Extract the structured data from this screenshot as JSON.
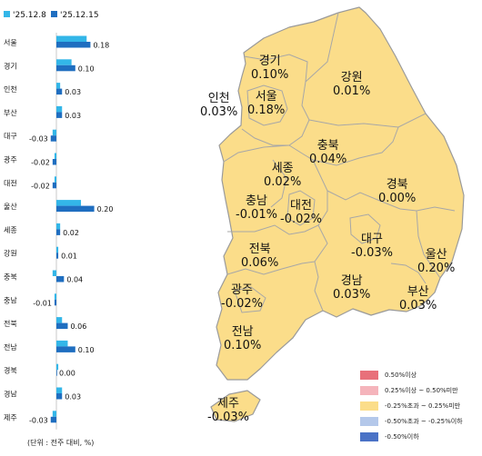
{
  "chart_data": {
    "type": "bar",
    "orientation": "horizontal",
    "legend_position": "top-left",
    "series": [
      {
        "name": "'25.12.8",
        "color": "#33b6e8"
      },
      {
        "name": "'25.12.15",
        "color": "#1f6ec0"
      }
    ],
    "categories": [
      "서울",
      "경기",
      "인천",
      "부산",
      "대구",
      "광주",
      "대전",
      "울산",
      "세종",
      "강원",
      "충북",
      "충남",
      "전북",
      "전남",
      "경북",
      "경남",
      "제주"
    ],
    "values_prev": [
      0.16,
      0.08,
      0.02,
      0.03,
      -0.02,
      -0.01,
      -0.01,
      0.13,
      0.02,
      0.01,
      -0.02,
      -0.01,
      0.03,
      0.06,
      0.01,
      0.03,
      -0.02
    ],
    "values_curr": [
      0.18,
      0.1,
      0.03,
      0.03,
      -0.03,
      -0.02,
      -0.02,
      0.2,
      0.02,
      0.01,
      0.04,
      -0.01,
      0.06,
      0.1,
      0.0,
      0.03,
      -0.03
    ],
    "labels_curr": [
      "0.18",
      "0.10",
      "0.03",
      "0.03",
      "-0.03",
      "-0.02",
      "-0.02",
      "0.20",
      "0.02",
      "0.01",
      "0.04",
      "-0.01",
      "0.06",
      "0.10",
      "0.00",
      "0.03",
      "-0.03"
    ],
    "unit_note": "(단위 : 전주 대비, %)"
  },
  "map": {
    "regions": [
      {
        "name": "경기",
        "value": "0.10%"
      },
      {
        "name": "강원",
        "value": "0.01%"
      },
      {
        "name": "인천",
        "value": "0.03%"
      },
      {
        "name": "서울",
        "value": "0.18%"
      },
      {
        "name": "충북",
        "value": "0.04%"
      },
      {
        "name": "세종",
        "value": "0.02%"
      },
      {
        "name": "경북",
        "value": "0.00%"
      },
      {
        "name": "충남",
        "value": "-0.01%"
      },
      {
        "name": "대전",
        "value": "-0.02%"
      },
      {
        "name": "대구",
        "value": "-0.03%"
      },
      {
        "name": "울산",
        "value": "0.20%"
      },
      {
        "name": "전북",
        "value": "0.06%"
      },
      {
        "name": "경남",
        "value": "0.03%"
      },
      {
        "name": "부산",
        "value": "0.03%"
      },
      {
        "name": "광주",
        "value": "-0.02%"
      },
      {
        "name": "전남",
        "value": "0.10%"
      },
      {
        "name": "제주",
        "value": "-0.03%"
      }
    ],
    "fill_color": "#fbdd8a",
    "legend": [
      {
        "label": "0.50%이상",
        "color": "#e8707a"
      },
      {
        "label": "0.25%이상 ~ 0.50%미만",
        "color": "#f5b4bb"
      },
      {
        "label": "-0.25%초과 ~ 0.25%미만",
        "color": "#fbdd8a"
      },
      {
        "label": "-0.50%초과 ~ -0.25%이하",
        "color": "#b4c8ea"
      },
      {
        "label": "-0.50%이하",
        "color": "#4a72c6"
      }
    ]
  }
}
